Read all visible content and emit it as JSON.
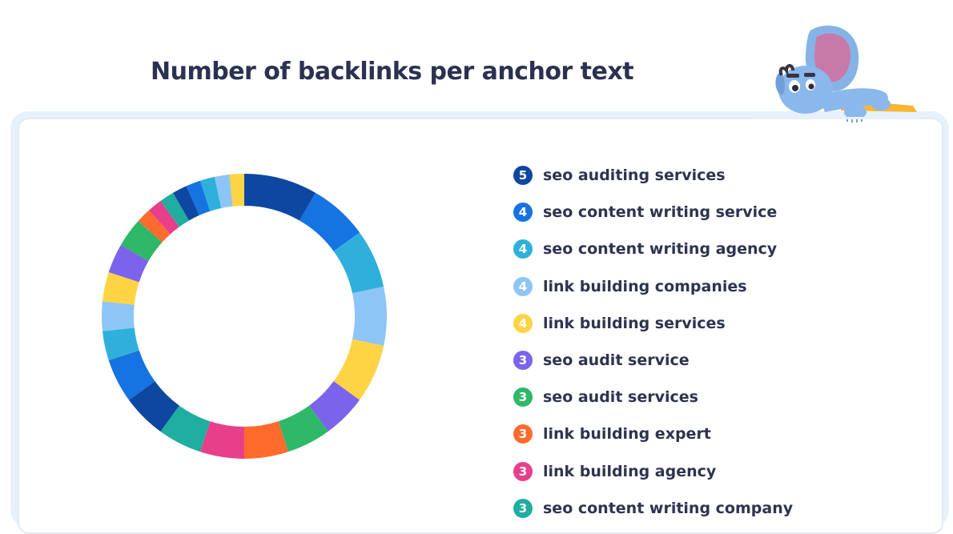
{
  "title": "Number of backlinks per anchor text",
  "mascot": "elephant-mascot",
  "chart_data": {
    "type": "pie",
    "style": "donut",
    "legend_position": "right",
    "colors": [
      "#0d47a1",
      "#1573e2",
      "#2fb0dc",
      "#8ec5f7",
      "#ffd444",
      "#7c63ec",
      "#2eb868",
      "#ff6b2d",
      "#e83f8b",
      "#1fae9f",
      "#0d47a1",
      "#1573e2",
      "#2fb0dc",
      "#8ec5f7",
      "#ffd444",
      "#7c63ec",
      "#2eb868",
      "#ff6b2d",
      "#e83f8b",
      "#1fae9f",
      "#0d47a1",
      "#1573e2",
      "#2fb0dc",
      "#8ec5f7",
      "#ffd444"
    ],
    "slices": [
      {
        "label": "seo auditing services",
        "value": 5
      },
      {
        "label": "seo content writing service",
        "value": 4
      },
      {
        "label": "seo content writing agency",
        "value": 4
      },
      {
        "label": "link building companies",
        "value": 4
      },
      {
        "label": "link building services",
        "value": 4
      },
      {
        "label": "seo audit service",
        "value": 3
      },
      {
        "label": "seo audit services",
        "value": 3
      },
      {
        "label": "link building expert",
        "value": 3
      },
      {
        "label": "link building agency",
        "value": 3
      },
      {
        "label": "seo content writing company",
        "value": 3
      },
      {
        "value": 3
      },
      {
        "value": 3
      },
      {
        "value": 2
      },
      {
        "value": 2
      },
      {
        "value": 2
      },
      {
        "value": 2
      },
      {
        "value": 2
      },
      {
        "value": 1
      },
      {
        "value": 1
      },
      {
        "value": 1
      },
      {
        "value": 1
      },
      {
        "value": 1
      },
      {
        "value": 1
      },
      {
        "value": 1
      },
      {
        "value": 1
      }
    ]
  }
}
